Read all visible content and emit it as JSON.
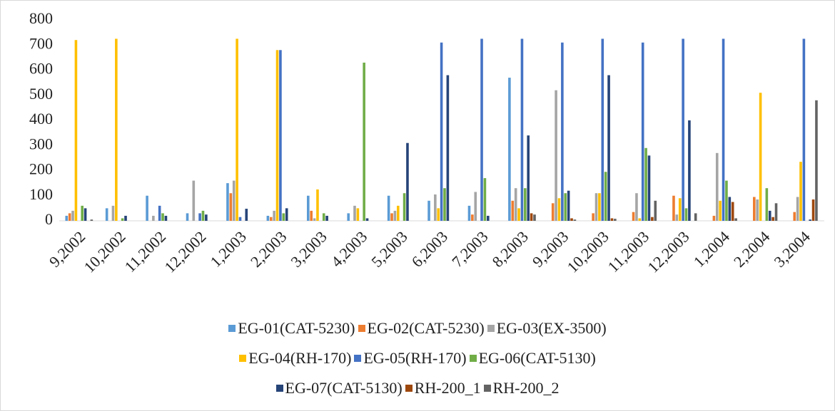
{
  "chart_data": {
    "type": "bar",
    "categories": [
      "9,2002",
      "10,2002",
      "11,2002",
      "12,2002",
      "1,2003",
      "2,2003",
      "3,2003",
      "4,2003",
      "5,2003",
      "6,2003",
      "7,2003",
      "8,2003",
      "9,2003",
      "10,2003",
      "11,2003",
      "12,2003",
      "1,2004",
      "2,2004",
      "3,2004"
    ],
    "series": [
      {
        "name": "EG-01(CAT-5230)",
        "color": "#5b9bd5",
        "values": [
          20,
          50,
          100,
          30,
          150,
          20,
          100,
          30,
          100,
          80,
          60,
          570,
          0,
          0,
          0,
          0,
          0,
          0,
          0
        ]
      },
      {
        "name": "EG-02(CAT-5230)",
        "color": "#ed7d31",
        "values": [
          30,
          0,
          0,
          0,
          110,
          15,
          40,
          0,
          30,
          0,
          25,
          80,
          70,
          30,
          35,
          100,
          20,
          95,
          35
        ]
      },
      {
        "name": "EG-03(EX-3500)",
        "color": "#a5a5a5",
        "values": [
          40,
          60,
          20,
          160,
          160,
          40,
          10,
          60,
          40,
          105,
          115,
          130,
          520,
          110,
          110,
          25,
          270,
          85,
          95
        ]
      },
      {
        "name": "EG-04(RH-170)",
        "color": "#ffc000",
        "values": [
          720,
          725,
          0,
          0,
          725,
          680,
          125,
          50,
          60,
          50,
          0,
          50,
          90,
          110,
          10,
          90,
          80,
          510,
          235
        ]
      },
      {
        "name": "EG-05(RH-170)",
        "color": "#4472c4",
        "values": [
          0,
          0,
          60,
          30,
          15,
          680,
          0,
          0,
          0,
          710,
          725,
          725,
          710,
          725,
          710,
          725,
          725,
          0,
          725
        ]
      },
      {
        "name": "EG-06(CAT-5130)",
        "color": "#70ad47",
        "values": [
          60,
          10,
          30,
          40,
          0,
          30,
          30,
          630,
          110,
          130,
          170,
          130,
          110,
          195,
          290,
          50,
          160,
          130,
          0
        ]
      },
      {
        "name": "EG-07(CAT-5130)",
        "color": "#264478",
        "values": [
          50,
          20,
          20,
          25,
          48,
          50,
          20,
          10,
          310,
          580,
          20,
          340,
          120,
          580,
          260,
          400,
          95,
          40,
          5
        ]
      },
      {
        "name": "RH-200_1",
        "color": "#9e480e",
        "values": [
          0,
          0,
          0,
          0,
          0,
          0,
          0,
          0,
          0,
          0,
          0,
          30,
          10,
          10,
          15,
          0,
          75,
          15,
          85
        ]
      },
      {
        "name": "RH-200_2",
        "color": "#636363",
        "values": [
          5,
          0,
          0,
          0,
          0,
          0,
          0,
          0,
          0,
          0,
          0,
          25,
          5,
          8,
          80,
          30,
          10,
          70,
          480
        ]
      }
    ],
    "ylim": [
      0,
      800
    ],
    "yticks": [
      0,
      100,
      200,
      300,
      400,
      500,
      600,
      700,
      800
    ],
    "grid": false
  }
}
